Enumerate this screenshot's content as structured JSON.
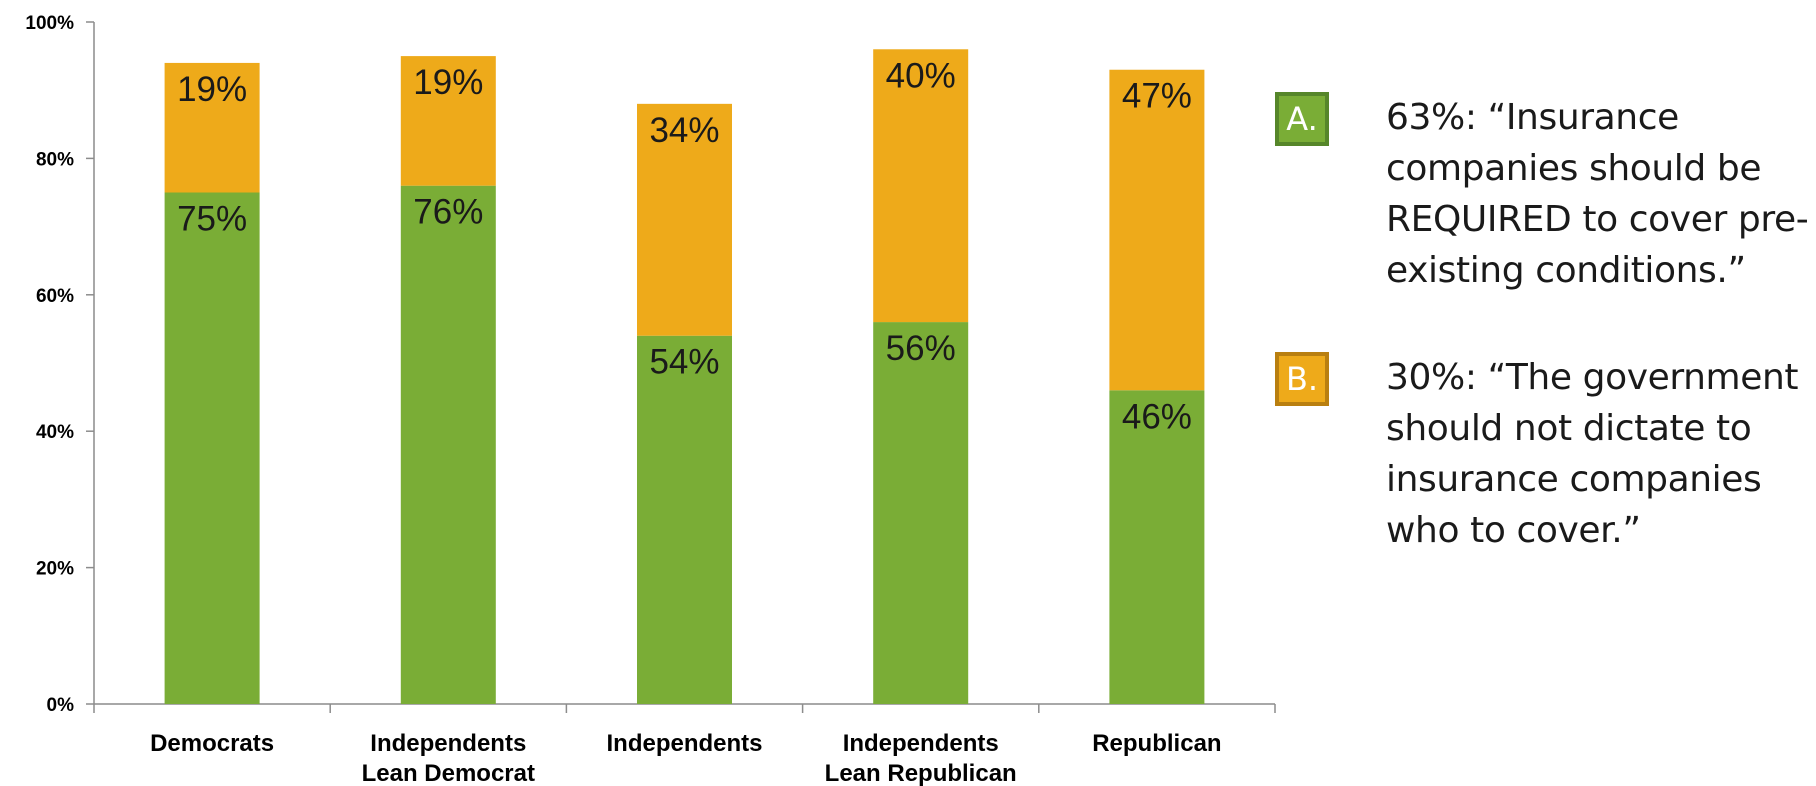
{
  "chart_data": {
    "type": "bar",
    "stacked": true,
    "categories": [
      [
        "Democrats"
      ],
      [
        "Independents",
        "Lean Democrat"
      ],
      [
        "Independents"
      ],
      [
        "Independents",
        "Lean Republican"
      ],
      [
        "Republican"
      ]
    ],
    "series": [
      {
        "key": "A",
        "color": "#7aad36",
        "values": [
          75,
          76,
          54,
          56,
          46
        ],
        "labels": [
          "75%",
          "76%",
          "54%",
          "56%",
          "46%"
        ]
      },
      {
        "key": "B",
        "color": "#eeaa1a",
        "values": [
          19,
          19,
          34,
          40,
          47
        ],
        "labels": [
          "19%",
          "19%",
          "34%",
          "40%",
          "47%"
        ]
      }
    ],
    "ylim": [
      0,
      100
    ],
    "yticks": [
      0,
      20,
      40,
      60,
      80,
      100
    ],
    "ytick_labels": [
      "0%",
      "20%",
      "40%",
      "60%",
      "80%",
      "100%"
    ],
    "grid": false
  },
  "legend": {
    "items": [
      {
        "key": "A.",
        "color": "#7aad36",
        "border": "#56862a",
        "text": "63%:  “Insurance companies should be REQUIRED to cover pre-existing conditions.”"
      },
      {
        "key": "B.",
        "color": "#eeaa1a",
        "border": "#b97f10",
        "text": "30%:  “The government should not dictate to insurance companies who to cover.”"
      }
    ]
  }
}
